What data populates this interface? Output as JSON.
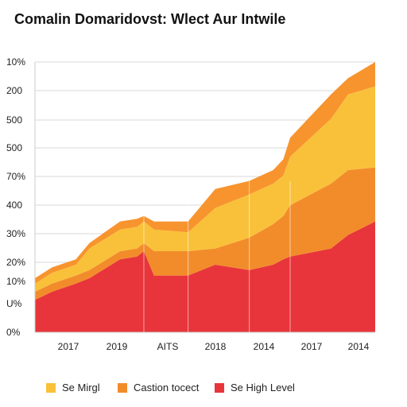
{
  "chart_data": {
    "type": "area",
    "title": "Comalin Domaridovst: Wlect Aur Intwile",
    "y_tick_labels": [
      "10%",
      "200",
      "500",
      "500",
      "70%",
      "400",
      "30%",
      "20%",
      "10%",
      "U%",
      "0%"
    ],
    "x_tick_labels": [
      "2017",
      "2019",
      "AITS",
      "2018",
      "2014",
      "2017",
      "2014"
    ],
    "x": [
      0,
      0.05,
      0.12,
      0.16,
      0.25,
      0.3,
      0.32,
      0.35,
      0.45,
      0.53,
      0.63,
      0.7,
      0.73,
      0.75,
      0.87,
      0.92,
      1.0
    ],
    "stacked": true,
    "ylim": [
      0,
      1
    ],
    "series": [
      {
        "name": "Se High Level",
        "color": "#e8353b",
        "values": [
          0.12,
          0.15,
          0.18,
          0.2,
          0.27,
          0.28,
          0.3,
          0.21,
          0.21,
          0.25,
          0.23,
          0.25,
          0.27,
          0.28,
          0.31,
          0.36,
          0.41
        ]
      },
      {
        "name": "Castion tocect",
        "color": "#f28c2b",
        "values": [
          0.03,
          0.03,
          0.03,
          0.03,
          0.03,
          0.03,
          0.03,
          0.09,
          0.09,
          0.06,
          0.12,
          0.15,
          0.16,
          0.19,
          0.24,
          0.24,
          0.2
        ]
      },
      {
        "name": "Se Mirgl",
        "color": "#f9c13a",
        "values": [
          0.03,
          0.04,
          0.04,
          0.08,
          0.08,
          0.08,
          0.08,
          0.08,
          0.07,
          0.15,
          0.16,
          0.15,
          0.15,
          0.18,
          0.24,
          0.28,
          0.3
        ]
      },
      {
        "name": "",
        "color": "#f7942e",
        "values": [
          0.02,
          0.02,
          0.02,
          0.02,
          0.03,
          0.03,
          0.02,
          0.03,
          0.04,
          0.07,
          0.05,
          0.05,
          0.06,
          0.07,
          0.09,
          0.06,
          0.09
        ]
      }
    ],
    "legend": [
      {
        "name": "Se Mirgl",
        "color": "#f9c13a"
      },
      {
        "name": "Castion tocect",
        "color": "#f28c2b"
      },
      {
        "name": "Se High Level",
        "color": "#e8353b"
      }
    ],
    "grid": "horizontal",
    "legend_position": "bottom"
  }
}
